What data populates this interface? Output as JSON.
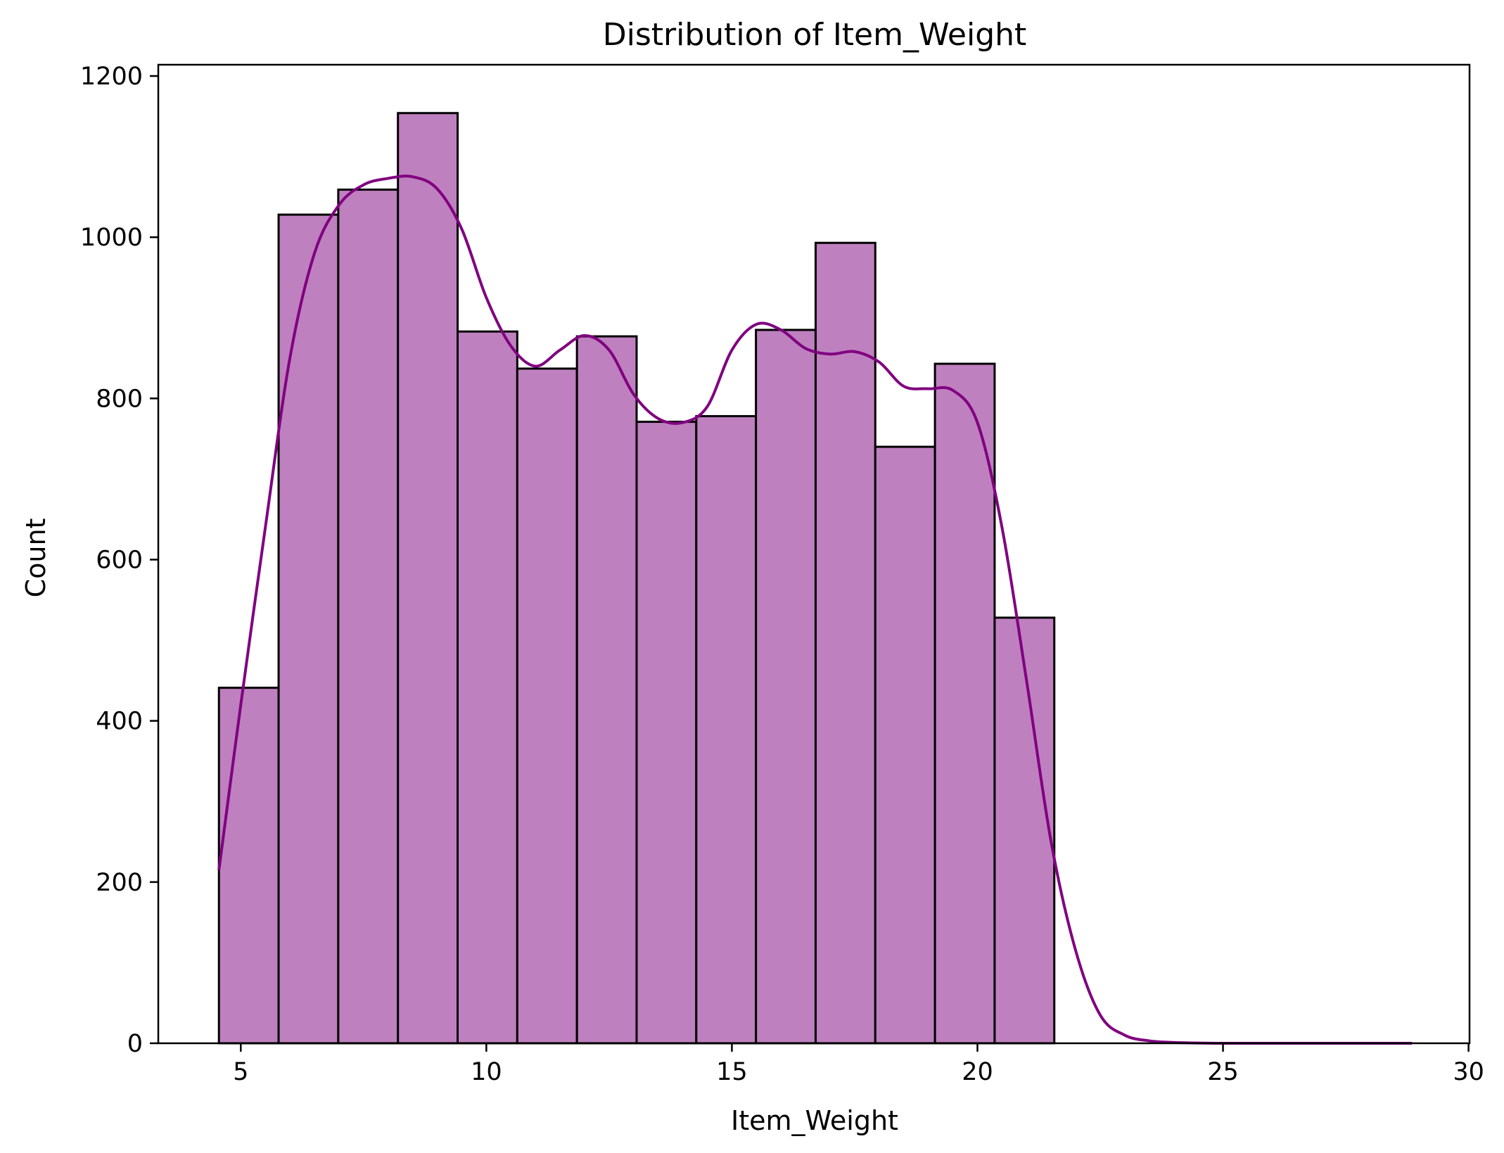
{
  "chart_data": {
    "type": "bar",
    "title": "Distribution of Item_Weight",
    "xlabel": "Item_Weight",
    "ylabel": "Count",
    "xlim": [
      3.32,
      30.02
    ],
    "ylim": [
      0,
      1214
    ],
    "x_ticks": [
      5,
      10,
      15,
      20,
      25,
      30
    ],
    "y_ticks": [
      0,
      200,
      400,
      600,
      800,
      1000,
      1200
    ],
    "bins": [
      {
        "x0": 4.555,
        "x1": 5.77,
        "count": 441
      },
      {
        "x0": 5.77,
        "x1": 6.985,
        "count": 1028
      },
      {
        "x0": 6.985,
        "x1": 8.2,
        "count": 1059
      },
      {
        "x0": 8.2,
        "x1": 9.415,
        "count": 1154
      },
      {
        "x0": 9.415,
        "x1": 10.63,
        "count": 883
      },
      {
        "x0": 10.63,
        "x1": 11.845,
        "count": 837
      },
      {
        "x0": 11.845,
        "x1": 13.06,
        "count": 877
      },
      {
        "x0": 13.06,
        "x1": 14.275,
        "count": 771
      },
      {
        "x0": 14.275,
        "x1": 15.49,
        "count": 778
      },
      {
        "x0": 15.49,
        "x1": 16.705,
        "count": 885
      },
      {
        "x0": 16.705,
        "x1": 17.92,
        "count": 993
      },
      {
        "x0": 17.92,
        "x1": 19.135,
        "count": 740
      },
      {
        "x0": 19.135,
        "x1": 20.35,
        "count": 843
      },
      {
        "x0": 20.35,
        "x1": 21.565,
        "count": 528
      }
    ],
    "kde": {
      "x": [
        4.555,
        5.0,
        5.5,
        6.0,
        6.5,
        7.0,
        7.5,
        8.0,
        8.5,
        9.0,
        9.5,
        10.0,
        10.5,
        11.0,
        11.5,
        12.0,
        12.5,
        13.0,
        13.5,
        14.0,
        14.5,
        15.0,
        15.5,
        16.0,
        16.5,
        17.0,
        17.5,
        18.0,
        18.5,
        19.0,
        19.5,
        20.0,
        20.5,
        21.0,
        21.5,
        22.0,
        22.5,
        23.0,
        23.5,
        24.0,
        25.0,
        27.0,
        28.85
      ],
      "y": [
        215,
        420,
        640,
        850,
        980,
        1040,
        1065,
        1073,
        1075,
        1060,
        1010,
        925,
        865,
        840,
        860,
        878,
        860,
        805,
        775,
        770,
        790,
        860,
        892,
        885,
        862,
        855,
        858,
        845,
        815,
        812,
        810,
        770,
        640,
        450,
        250,
        115,
        35,
        10,
        3,
        1,
        0,
        0,
        0
      ],
      "color": "#800080"
    },
    "bar_fill": "#bf80bf",
    "bar_edge": "#000000",
    "grid": false,
    "legend": "none"
  }
}
